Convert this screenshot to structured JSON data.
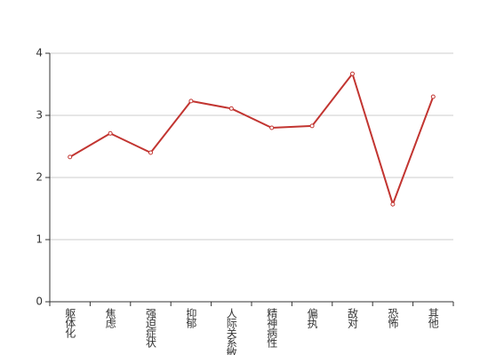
{
  "chart_data": {
    "type": "line",
    "categories": [
      "躯体化",
      "焦虑",
      "强迫症状",
      "抑郁",
      "人际关系敏感",
      "精神病性",
      "偏执",
      "敌对",
      "恐怖",
      "其他"
    ],
    "series": [
      {
        "color": "#c23531",
        "values": [
          2.33,
          2.71,
          2.4,
          3.23,
          3.11,
          2.8,
          2.83,
          3.67,
          1.57,
          3.3
        ]
      }
    ],
    "ylim": [
      0,
      4
    ],
    "yticks": [
      0,
      1,
      2,
      3,
      4
    ],
    "grid": true
  }
}
